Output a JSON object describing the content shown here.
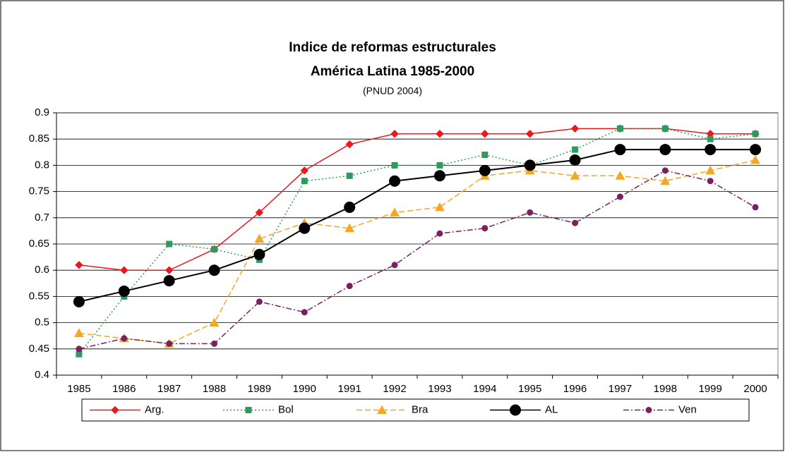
{
  "chart_data": {
    "type": "line",
    "title": "Indice de reformas estructurales",
    "subtitle": "América Latina 1985-2000",
    "note": "(PNUD 2004)",
    "categories": [
      "1985",
      "1986",
      "1987",
      "1988",
      "1989",
      "1990",
      "1991",
      "1992",
      "1993",
      "1994",
      "1995",
      "1996",
      "1997",
      "1998",
      "1999",
      "2000"
    ],
    "series": [
      {
        "name": "Arg.",
        "color": "#e8191f",
        "dash": "solid",
        "marker": "diamond",
        "values": [
          0.61,
          0.6,
          0.6,
          0.64,
          0.71,
          0.79,
          0.84,
          0.86,
          0.86,
          0.86,
          0.86,
          0.87,
          0.87,
          0.87,
          0.86,
          0.86
        ]
      },
      {
        "name": "Bol",
        "color": "#2e9a5c",
        "dash": "dotted",
        "marker": "square",
        "values": [
          0.44,
          0.55,
          0.65,
          0.64,
          0.62,
          0.77,
          0.78,
          0.8,
          0.8,
          0.82,
          0.8,
          0.83,
          0.87,
          0.87,
          0.85,
          0.86
        ]
      },
      {
        "name": "Bra",
        "color": "#f5a623",
        "dash": "dashed",
        "marker": "triangle",
        "values": [
          0.48,
          0.47,
          0.46,
          0.5,
          0.66,
          0.69,
          0.68,
          0.71,
          0.72,
          0.78,
          0.79,
          0.78,
          0.78,
          0.77,
          0.79,
          0.81
        ]
      },
      {
        "name": "AL",
        "color": "#000000",
        "dash": "solid",
        "marker": "circle",
        "values": [
          0.54,
          0.56,
          0.58,
          0.6,
          0.63,
          0.68,
          0.72,
          0.77,
          0.78,
          0.79,
          0.8,
          0.81,
          0.83,
          0.83,
          0.83,
          0.83
        ]
      },
      {
        "name": "Ven",
        "color": "#7a2060",
        "dash": "dashdot",
        "marker": "dot",
        "values": [
          0.45,
          0.47,
          0.46,
          0.46,
          0.54,
          0.52,
          0.57,
          0.61,
          0.67,
          0.68,
          0.71,
          0.69,
          0.74,
          0.79,
          0.77,
          0.72
        ]
      }
    ],
    "ylim": [
      0.4,
      0.9
    ],
    "yticks": [
      0.4,
      0.45,
      0.5,
      0.55,
      0.6,
      0.65,
      0.7,
      0.75,
      0.8,
      0.85,
      0.9
    ],
    "grid": true,
    "legend": "bottom"
  }
}
